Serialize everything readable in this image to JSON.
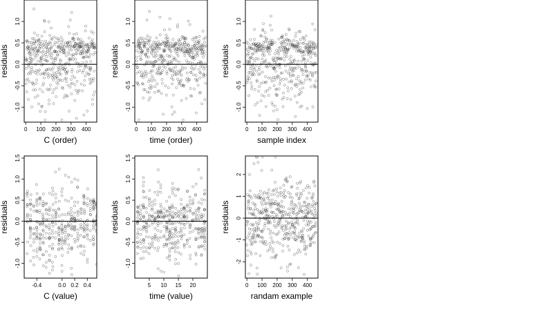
{
  "chart_data": [
    {
      "type": "scatter",
      "xlabel": "C (order)",
      "ylabel": "residuals",
      "xlim": [
        -10,
        470
      ],
      "ylim": [
        -1.35,
        1.5
      ],
      "xticks": [
        0,
        100,
        200,
        300,
        400
      ],
      "xtick_labels": [
        "0",
        "100",
        "200",
        "300",
        "400"
      ],
      "yticks": [
        -1.0,
        -0.5,
        0.0,
        0.5,
        1.0
      ],
      "ytick_labels": [
        "-1.0",
        "-0.5",
        "0.0",
        "0.5",
        "1.0"
      ],
      "hline": 0,
      "pattern": "order_c",
      "n": 460
    },
    {
      "type": "scatter",
      "xlabel": "time (order)",
      "ylabel": "residuals",
      "xlim": [
        -10,
        470
      ],
      "ylim": [
        -1.35,
        1.5
      ],
      "xticks": [
        0,
        100,
        200,
        300,
        400
      ],
      "xtick_labels": [
        "0",
        "100",
        "200",
        "300",
        "400"
      ],
      "yticks": [
        -1.0,
        -0.5,
        0.0,
        0.5,
        1.0
      ],
      "ytick_labels": [
        "-1.0",
        "-0.5",
        "0.0",
        "0.5",
        "1.0"
      ],
      "hline": 0,
      "pattern": "order_time",
      "n": 460
    },
    {
      "type": "scatter",
      "xlabel": "sample index",
      "ylabel": "residuals",
      "xlim": [
        -10,
        470
      ],
      "ylim": [
        -1.35,
        1.5
      ],
      "xticks": [
        0,
        100,
        200,
        300,
        400
      ],
      "xtick_labels": [
        "0",
        "100",
        "200",
        "300",
        "400"
      ],
      "yticks": [
        -1.0,
        -0.5,
        0.0,
        0.5,
        1.0
      ],
      "ytick_labels": [
        "-1.0",
        "-0.5",
        "0.0",
        "0.5",
        "1.0"
      ],
      "hline": 0,
      "pattern": "index",
      "n": 460
    },
    {
      "type": "scatter",
      "xlabel": "C (value)",
      "ylabel": "residuals",
      "xlim": [
        -0.6,
        0.55
      ],
      "ylim": [
        -1.35,
        1.55
      ],
      "xticks": [
        -0.4,
        0.0,
        0.2,
        0.4
      ],
      "xtick_labels": [
        "-0.4",
        "0.0",
        "0.2",
        "0.4"
      ],
      "yticks": [
        -1.0,
        -0.5,
        0.0,
        0.5,
        1.0,
        1.5
      ],
      "ytick_labels": [
        "-1.0",
        "-0.5",
        "0.0",
        "0.5",
        "1.0",
        "1.5"
      ],
      "hline": 0,
      "pattern": "value_c",
      "n": 400
    },
    {
      "type": "scatter",
      "xlabel": "time (value)",
      "ylabel": "residuals",
      "xlim": [
        0,
        25
      ],
      "ylim": [
        -1.35,
        1.55
      ],
      "xticks": [
        5,
        10,
        15,
        20
      ],
      "xtick_labels": [
        "5",
        "10",
        "15",
        "20"
      ],
      "yticks": [
        -1.0,
        -0.5,
        0.0,
        0.5,
        1.0,
        1.5
      ],
      "ytick_labels": [
        "-1.0",
        "-0.5",
        "0.0",
        "0.5",
        "1.0",
        "1.5"
      ],
      "hline": 0,
      "pattern": "value_time",
      "n": 420
    },
    {
      "type": "scatter",
      "xlabel": "randam example",
      "ylabel": "residuals",
      "xlim": [
        -10,
        470
      ],
      "ylim": [
        -2.75,
        2.85
      ],
      "xticks": [
        0,
        100,
        200,
        300,
        400
      ],
      "xtick_labels": [
        "0",
        "100",
        "200",
        "300",
        "400"
      ],
      "yticks": [
        -2,
        -1,
        0,
        1,
        2
      ],
      "ytick_labels": [
        "-2",
        "-1",
        "0",
        "1",
        "2"
      ],
      "hline": 0,
      "pattern": "random",
      "n": 460
    }
  ]
}
